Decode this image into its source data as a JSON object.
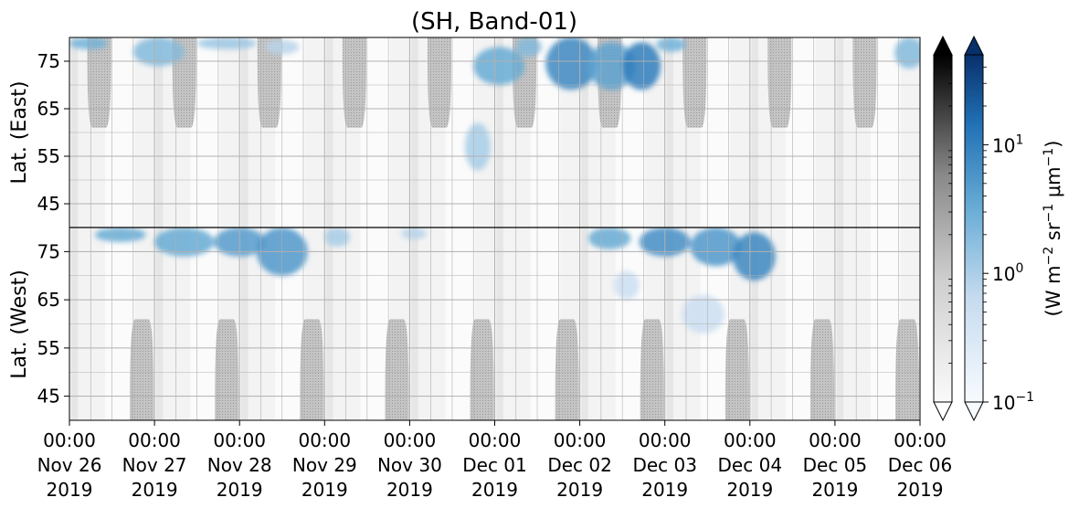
{
  "chart_data": {
    "type": "heatmap",
    "title": "(SH, Band-01)",
    "upper_panel": {
      "ylabel": "Lat. (East)",
      "yticks": [
        "45",
        "55",
        "65",
        "75"
      ],
      "lat_range": [
        40,
        80
      ]
    },
    "lower_panel": {
      "ylabel": "Lat. (West)",
      "yticks": [
        "75",
        "65",
        "55",
        "45"
      ],
      "lat_range": [
        80,
        40
      ]
    },
    "x_ticks": [
      {
        "time": "00:00",
        "date": "Nov 26",
        "year": "2019"
      },
      {
        "time": "00:00",
        "date": "Nov 27",
        "year": "2019"
      },
      {
        "time": "00:00",
        "date": "Nov 28",
        "year": "2019"
      },
      {
        "time": "00:00",
        "date": "Nov 29",
        "year": "2019"
      },
      {
        "time": "00:00",
        "date": "Nov 30",
        "year": "2019"
      },
      {
        "time": "00:00",
        "date": "Dec 01",
        "year": "2019"
      },
      {
        "time": "00:00",
        "date": "Dec 02",
        "year": "2019"
      },
      {
        "time": "00:00",
        "date": "Dec 03",
        "year": "2019"
      },
      {
        "time": "00:00",
        "date": "Dec 04",
        "year": "2019"
      },
      {
        "time": "00:00",
        "date": "Dec 05",
        "year": "2019"
      },
      {
        "time": "00:00",
        "date": "Dec 06",
        "year": "2019"
      }
    ],
    "x_range": [
      "2019-11-26 00:00",
      "2019-12-06 00:00"
    ],
    "grid": true,
    "colorbars": [
      {
        "cmap": "Greys",
        "scale": "log",
        "range": [
          0.1,
          50
        ],
        "extend": "both"
      },
      {
        "cmap": "Blues",
        "scale": "log",
        "range": [
          0.1,
          50
        ],
        "extend": "both",
        "ticks": [
          {
            "base": "10",
            "exp": "1",
            "value": 10
          },
          {
            "base": "10",
            "exp": "0",
            "value": 1
          },
          {
            "base": "10",
            "exp": "−1",
            "value": 0.1
          }
        ]
      }
    ],
    "colorbar_label": "(W m$^{-2}$ sr$^{-1}$ $\\mu$m$^{-1}$)",
    "colorbar_label_parts": {
      "prefix": "(W m",
      "e1": "−2",
      "mid1": " sr",
      "e2": "−1",
      "mid2": " μm",
      "e3": "−1",
      "suffix": ")"
    },
    "daylight_mask_color": "#c0c0c0",
    "colors": {
      "blue_light": "#deebf7",
      "blue_mid": "#6baed6",
      "blue_dark": "#08519c",
      "grey_bg": "#f0f0f0"
    },
    "emission_blobs_east": [
      {
        "day": 0.0,
        "lat": 79,
        "days": 0.45,
        "lats": 3,
        "value": 2.0
      },
      {
        "day": 0.75,
        "lat": 77,
        "days": 0.6,
        "lats": 6,
        "value": 1.5
      },
      {
        "day": 1.5,
        "lat": 79,
        "days": 0.7,
        "lats": 3,
        "value": 1.0
      },
      {
        "day": 2.3,
        "lat": 78,
        "days": 0.4,
        "lats": 3,
        "value": 0.6
      },
      {
        "day": 4.65,
        "lat": 57,
        "days": 0.3,
        "lats": 10,
        "value": 0.8
      },
      {
        "day": 4.75,
        "lat": 74,
        "days": 0.6,
        "lats": 8,
        "value": 2.5
      },
      {
        "day": 5.25,
        "lat": 78,
        "days": 0.3,
        "lats": 4,
        "value": 1.5
      },
      {
        "day": 5.6,
        "lat": 75,
        "days": 0.6,
        "lats": 12,
        "value": 6.0
      },
      {
        "day": 6.1,
        "lat": 74,
        "days": 0.55,
        "lats": 10,
        "value": 3.0
      },
      {
        "day": 6.5,
        "lat": 74,
        "days": 0.45,
        "lats": 10,
        "value": 8.0
      },
      {
        "day": 6.9,
        "lat": 79,
        "days": 0.35,
        "lats": 4,
        "value": 2.0
      },
      {
        "day": 9.7,
        "lat": 77,
        "days": 0.35,
        "lats": 7,
        "value": 1.5
      }
    ],
    "emission_blobs_west": [
      {
        "day": 0.3,
        "lat": 79,
        "days": 0.6,
        "lats": 4,
        "value": 2.5
      },
      {
        "day": 1.0,
        "lat": 77,
        "days": 0.7,
        "lats": 6,
        "value": 2.5
      },
      {
        "day": 1.7,
        "lat": 77,
        "days": 0.6,
        "lats": 6,
        "value": 3.5
      },
      {
        "day": 2.2,
        "lat": 75,
        "days": 0.6,
        "lats": 10,
        "value": 4.0
      },
      {
        "day": 3.0,
        "lat": 78,
        "days": 0.3,
        "lats": 4,
        "value": 0.8
      },
      {
        "day": 3.9,
        "lat": 79,
        "days": 0.3,
        "lats": 3,
        "value": 0.6
      },
      {
        "day": 6.1,
        "lat": 78,
        "days": 0.5,
        "lats": 5,
        "value": 2.5
      },
      {
        "day": 6.7,
        "lat": 77,
        "days": 0.6,
        "lats": 6,
        "value": 5.0
      },
      {
        "day": 7.3,
        "lat": 76,
        "days": 0.6,
        "lats": 8,
        "value": 4.0
      },
      {
        "day": 7.8,
        "lat": 74,
        "days": 0.5,
        "lats": 10,
        "value": 6.0
      },
      {
        "day": 6.4,
        "lat": 68,
        "days": 0.3,
        "lats": 6,
        "value": 0.4
      },
      {
        "day": 7.2,
        "lat": 62,
        "days": 0.5,
        "lats": 8,
        "value": 0.4
      }
    ]
  }
}
